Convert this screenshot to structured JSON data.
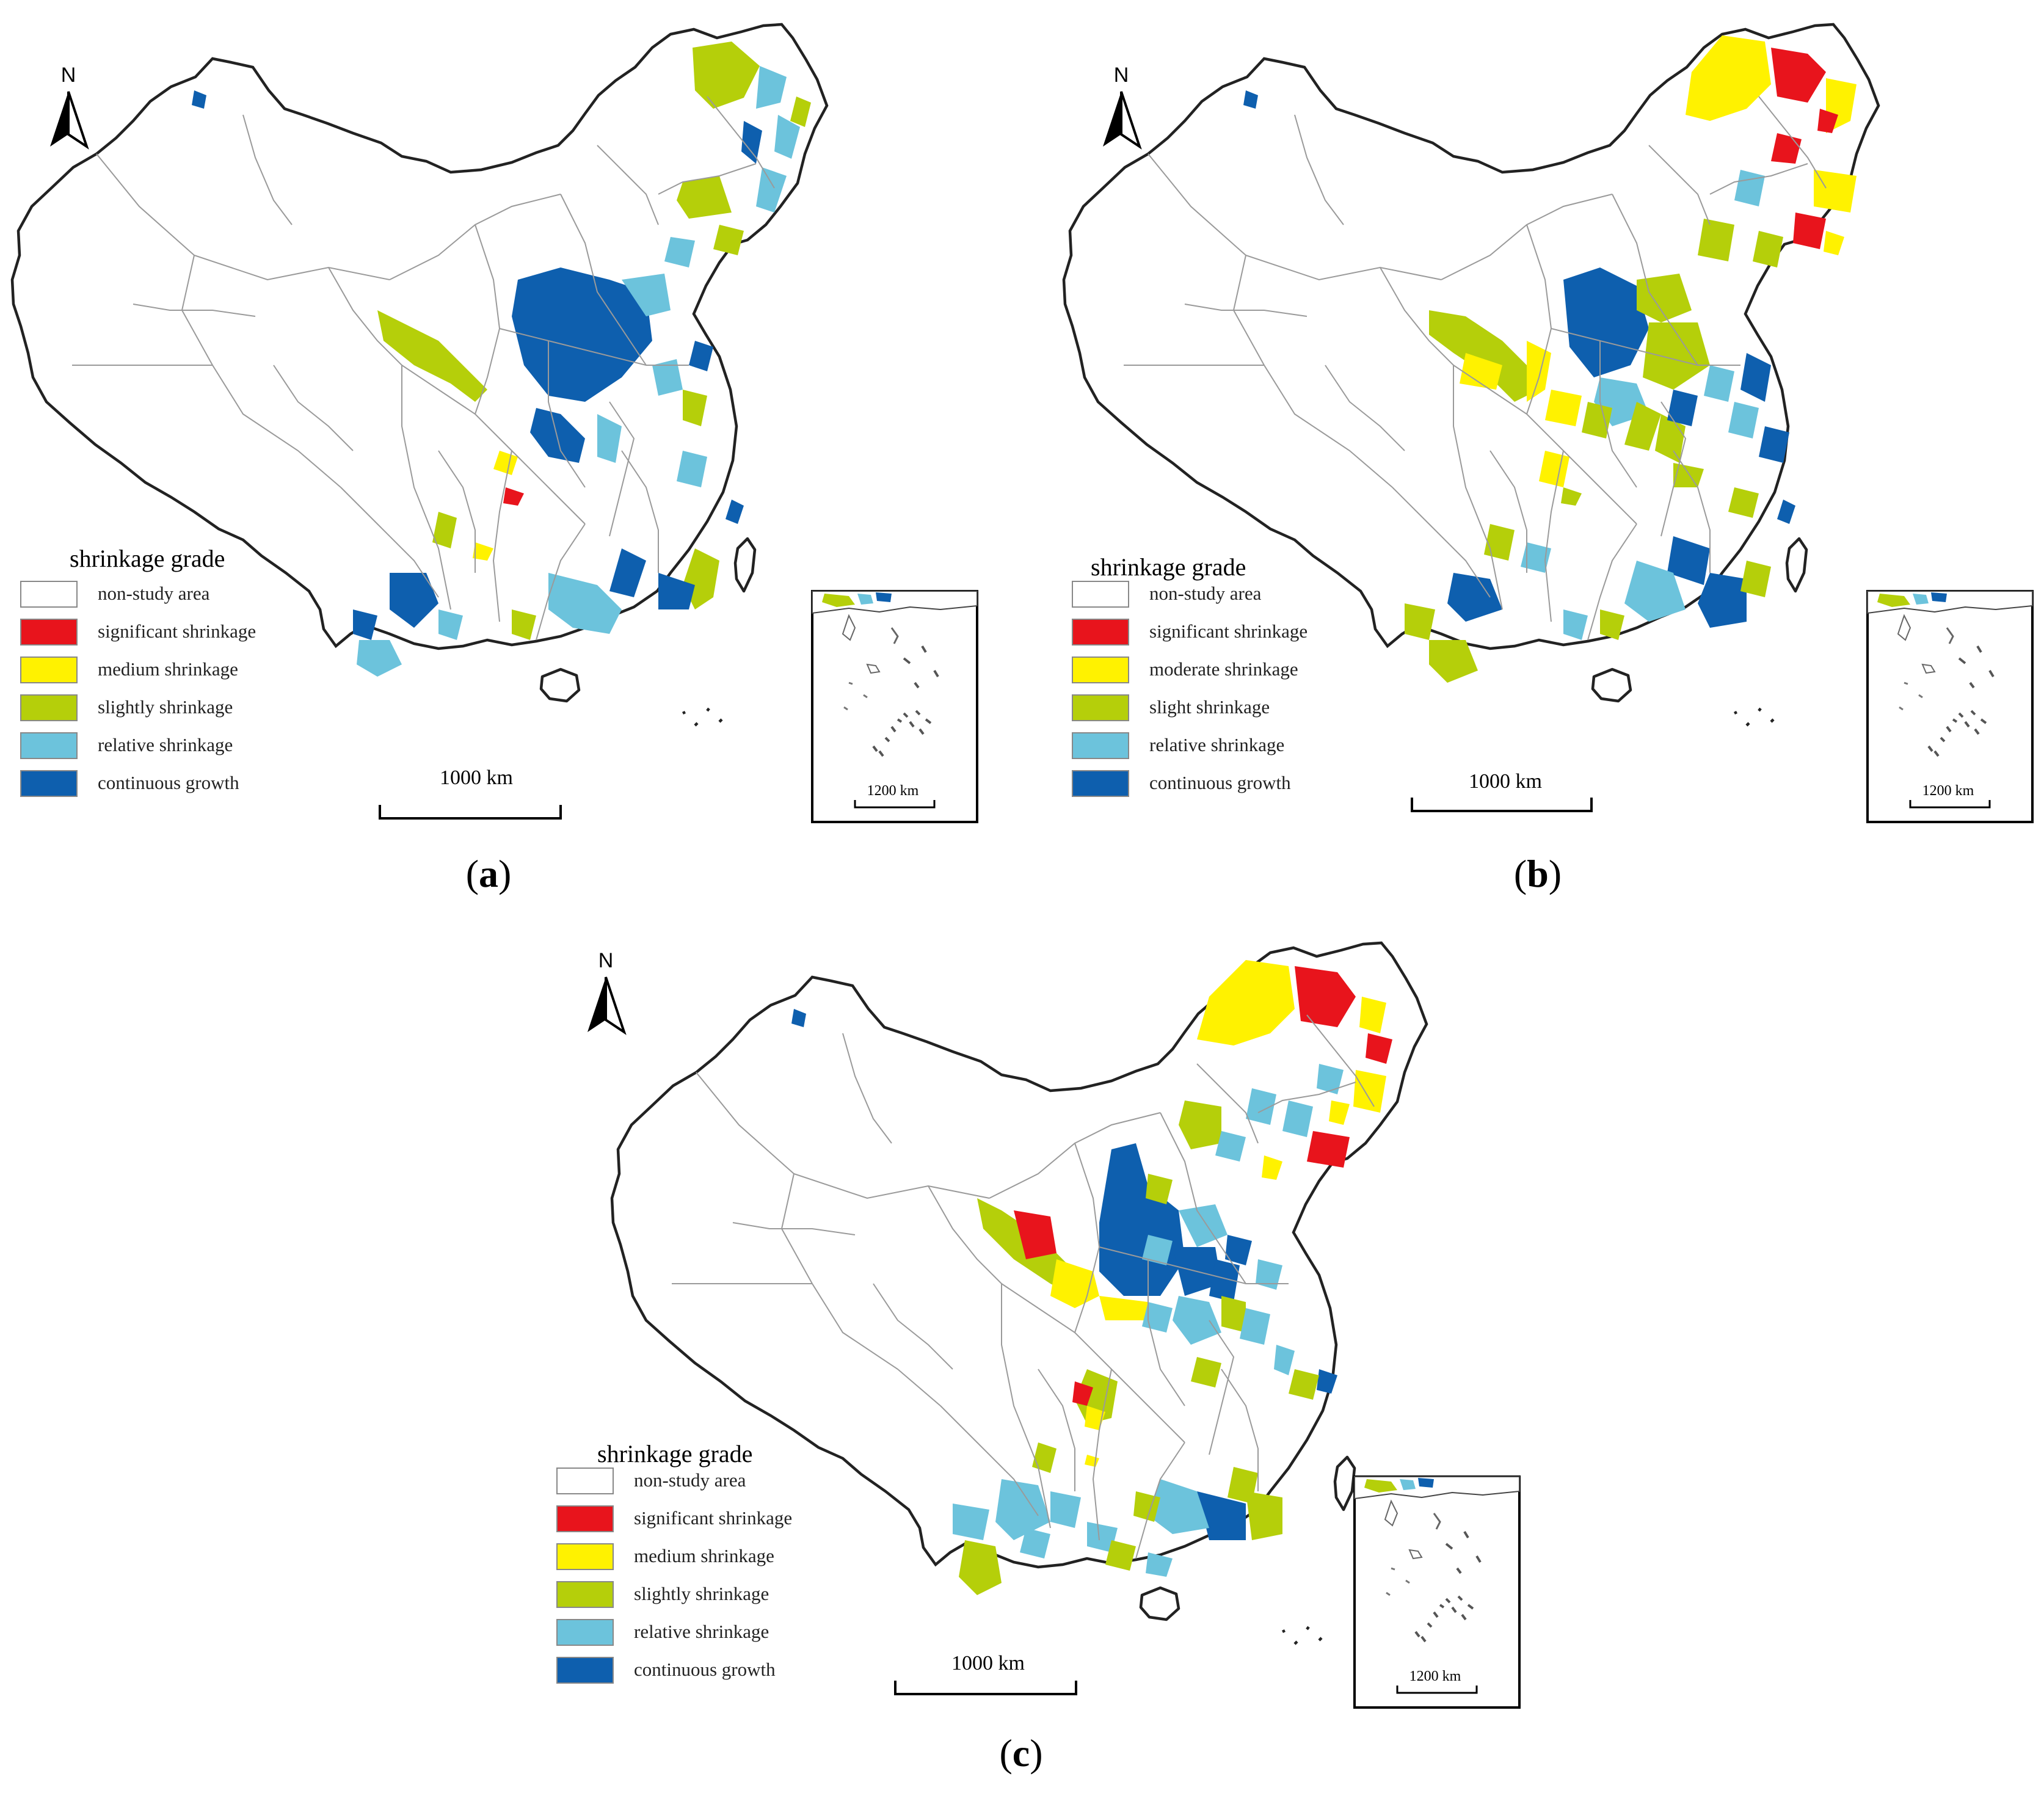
{
  "figure": {
    "panels": [
      {
        "id": "a",
        "caption_letter": "a",
        "north": "N",
        "legend_title": "shrinkage grade",
        "legend": [
          "non-study area",
          "significant shrinkage",
          "medium shrinkage",
          "slightly shrinkage",
          "relative shrinkage",
          "continuous growth"
        ],
        "scale": "1000 km",
        "inset_scale": "1200 km"
      },
      {
        "id": "b",
        "caption_letter": "b",
        "north": "N",
        "legend_title": "shrinkage grade",
        "legend": [
          "non-study area",
          "significant shrinkage",
          "moderate shrinkage",
          "slight shrinkage",
          "relative shrinkage",
          "continuous growth"
        ],
        "scale": "1000 km",
        "inset_scale": "1200 km"
      },
      {
        "id": "c",
        "caption_letter": "c",
        "north": "N",
        "legend_title": "shrinkage grade",
        "legend": [
          "non-study area",
          "significant shrinkage",
          "medium shrinkage",
          "slightly shrinkage",
          "relative shrinkage",
          "continuous growth"
        ],
        "scale": "1000 km",
        "inset_scale": "1200 km"
      }
    ],
    "grade_colors": {
      "non_study": "#ffffff",
      "significant": "#e8141c",
      "medium": "#fff200",
      "slight": "#b5cf0a",
      "relative": "#6cc3dc",
      "growth": "#0e5fae"
    }
  }
}
